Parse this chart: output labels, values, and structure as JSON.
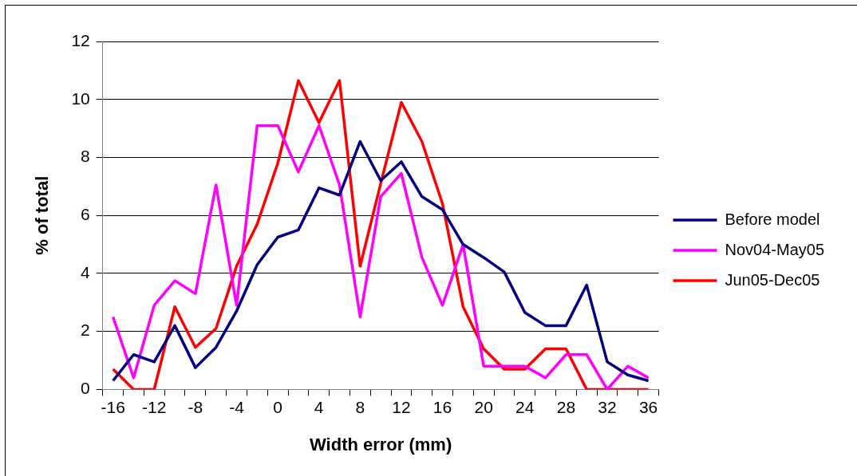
{
  "chart_data": {
    "type": "line",
    "xlabel": "Width error (mm)",
    "ylabel": "% of total",
    "categories": [
      "-16",
      null,
      "-12",
      null,
      "-8",
      null,
      "-4",
      null,
      "0",
      null,
      "4",
      null,
      "8",
      null,
      "12",
      null,
      "16",
      null,
      "20",
      null,
      "24",
      null,
      "28",
      null,
      "32",
      null,
      "36"
    ],
    "series": [
      {
        "name": "Before model",
        "color": "#000080",
        "values": [
          0.3,
          1.2,
          0.95,
          2.2,
          0.75,
          1.45,
          2.7,
          4.3,
          5.25,
          5.5,
          6.95,
          6.7,
          8.55,
          7.2,
          7.85,
          6.65,
          6.2,
          5.0,
          4.55,
          4.05,
          2.65,
          2.2,
          2.2,
          3.6,
          0.95,
          0.5,
          0.3
        ]
      },
      {
        "name": "Nov04-May05",
        "color": "#ff00ff",
        "values": [
          2.5,
          0.4,
          2.9,
          3.75,
          3.3,
          7.05,
          2.9,
          9.1,
          9.1,
          7.5,
          9.1,
          7.05,
          2.5,
          6.65,
          7.45,
          4.55,
          2.9,
          5.0,
          0.8,
          0.8,
          0.8,
          0.4,
          1.2,
          1.2,
          0,
          0.8,
          0.4
        ]
      },
      {
        "name": "Jun05-Dec05",
        "color": "#ff0000",
        "values": [
          0.7,
          0,
          0,
          2.85,
          1.45,
          2.1,
          4.25,
          5.7,
          7.8,
          10.65,
          9.2,
          10.65,
          4.25,
          7.1,
          9.9,
          8.55,
          6.4,
          2.85,
          1.4,
          0.7,
          0.7,
          1.4,
          1.4,
          0,
          0,
          0,
          0
        ]
      }
    ],
    "ylim": [
      0,
      12
    ],
    "yticks": [
      0,
      2,
      4,
      6,
      8,
      10,
      12
    ],
    "grid": "y",
    "legend": "right",
    "marker": "none",
    "line_style": "solid"
  }
}
